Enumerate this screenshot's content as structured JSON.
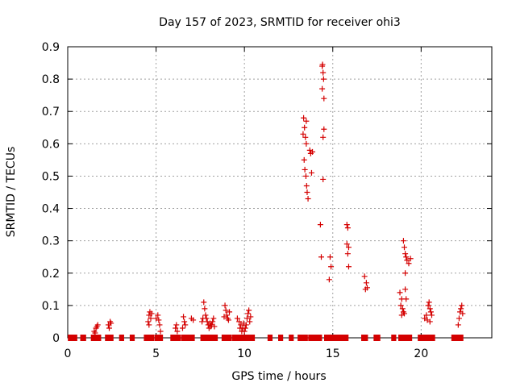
{
  "chart_data": {
    "type": "scatter",
    "title": "Day 157 of 2023, SRMTID for receiver ohi3",
    "xlabel": "GPS time / hours",
    "ylabel": "SRMTID / TECUs",
    "xlim": [
      0,
      24
    ],
    "ylim": [
      0,
      0.9
    ],
    "xticks": [
      0,
      5,
      10,
      15,
      20
    ],
    "yticks": [
      0,
      0.1,
      0.2,
      0.3,
      0.4,
      0.5,
      0.6,
      0.7,
      0.8,
      0.9
    ],
    "grid": true,
    "marker": "+",
    "color": "#d40000",
    "series": [
      {
        "name": "SRMTID",
        "points": [
          [
            1.5,
            0.02
          ],
          [
            1.6,
            0.03
          ],
          [
            1.7,
            0.04
          ],
          [
            1.55,
            0.015
          ],
          [
            1.65,
            0.035
          ],
          [
            2.3,
            0.04
          ],
          [
            2.4,
            0.05
          ],
          [
            2.35,
            0.03
          ],
          [
            2.45,
            0.045
          ],
          [
            4.6,
            0.07
          ],
          [
            4.65,
            0.08
          ],
          [
            4.7,
            0.06
          ],
          [
            4.55,
            0.05
          ],
          [
            4.75,
            0.075
          ],
          [
            4.6,
            0.04
          ],
          [
            5.1,
            0.07
          ],
          [
            5.15,
            0.055
          ],
          [
            5.2,
            0.04
          ],
          [
            5.25,
            0.02
          ],
          [
            5.0,
            0.06
          ],
          [
            6.1,
            0.03
          ],
          [
            6.2,
            0.02
          ],
          [
            6.15,
            0.04
          ],
          [
            6.5,
            0.03
          ],
          [
            6.6,
            0.05
          ],
          [
            6.55,
            0.065
          ],
          [
            6.65,
            0.04
          ],
          [
            7.0,
            0.06
          ],
          [
            7.1,
            0.055
          ],
          [
            7.7,
            0.11
          ],
          [
            7.75,
            0.09
          ],
          [
            7.8,
            0.07
          ],
          [
            7.85,
            0.06
          ],
          [
            7.9,
            0.05
          ],
          [
            7.95,
            0.04
          ],
          [
            8.0,
            0.03
          ],
          [
            8.05,
            0.045
          ],
          [
            8.1,
            0.035
          ],
          [
            8.15,
            0.04
          ],
          [
            8.2,
            0.05
          ],
          [
            8.3,
            0.035
          ],
          [
            7.6,
            0.05
          ],
          [
            7.65,
            0.06
          ],
          [
            8.25,
            0.06
          ],
          [
            8.9,
            0.1
          ],
          [
            8.95,
            0.085
          ],
          [
            9.0,
            0.07
          ],
          [
            9.05,
            0.06
          ],
          [
            9.1,
            0.055
          ],
          [
            8.85,
            0.065
          ],
          [
            9.15,
            0.08
          ],
          [
            9.6,
            0.06
          ],
          [
            9.7,
            0.05
          ],
          [
            9.8,
            0.04
          ],
          [
            9.9,
            0.03
          ],
          [
            10.0,
            0.02
          ],
          [
            10.1,
            0.04
          ],
          [
            10.15,
            0.06
          ],
          [
            10.2,
            0.075
          ],
          [
            10.25,
            0.085
          ],
          [
            10.3,
            0.05
          ],
          [
            9.75,
            0.03
          ],
          [
            9.85,
            0.02
          ],
          [
            9.95,
            0.045
          ],
          [
            10.05,
            0.03
          ],
          [
            10.35,
            0.065
          ],
          [
            13.35,
            0.68
          ],
          [
            13.4,
            0.65
          ],
          [
            13.45,
            0.62
          ],
          [
            13.5,
            0.6
          ],
          [
            13.38,
            0.55
          ],
          [
            13.42,
            0.52
          ],
          [
            13.48,
            0.5
          ],
          [
            13.52,
            0.47
          ],
          [
            13.55,
            0.45
          ],
          [
            13.6,
            0.43
          ],
          [
            13.7,
            0.58
          ],
          [
            13.75,
            0.57
          ],
          [
            13.85,
            0.575
          ],
          [
            13.8,
            0.51
          ],
          [
            13.32,
            0.63
          ],
          [
            13.5,
            0.67
          ],
          [
            14.3,
            0.35
          ],
          [
            14.35,
            0.25
          ],
          [
            14.4,
            0.84
          ],
          [
            14.42,
            0.845
          ],
          [
            14.45,
            0.82
          ],
          [
            14.48,
            0.8
          ],
          [
            14.4,
            0.77
          ],
          [
            14.5,
            0.74
          ],
          [
            14.45,
            0.62
          ],
          [
            14.5,
            0.645
          ],
          [
            14.45,
            0.49
          ],
          [
            14.85,
            0.25
          ],
          [
            14.9,
            0.22
          ],
          [
            14.8,
            0.18
          ],
          [
            15.8,
            0.35
          ],
          [
            15.85,
            0.34
          ],
          [
            15.8,
            0.29
          ],
          [
            15.9,
            0.28
          ],
          [
            15.85,
            0.26
          ],
          [
            15.9,
            0.22
          ],
          [
            16.8,
            0.19
          ],
          [
            16.9,
            0.17
          ],
          [
            16.85,
            0.15
          ],
          [
            16.95,
            0.155
          ],
          [
            18.8,
            0.14
          ],
          [
            18.9,
            0.12
          ],
          [
            18.85,
            0.1
          ],
          [
            18.95,
            0.09
          ],
          [
            19.0,
            0.08
          ],
          [
            19.05,
            0.075
          ],
          [
            19.1,
            0.15
          ],
          [
            19.15,
            0.12
          ],
          [
            18.9,
            0.07
          ],
          [
            19.1,
            0.2
          ],
          [
            19.0,
            0.3
          ],
          [
            19.05,
            0.28
          ],
          [
            19.1,
            0.26
          ],
          [
            19.2,
            0.24
          ],
          [
            19.3,
            0.23
          ],
          [
            19.4,
            0.245
          ],
          [
            19.15,
            0.25
          ],
          [
            20.2,
            0.06
          ],
          [
            20.3,
            0.07
          ],
          [
            20.4,
            0.1
          ],
          [
            20.45,
            0.11
          ],
          [
            20.5,
            0.09
          ],
          [
            20.55,
            0.08
          ],
          [
            20.35,
            0.055
          ],
          [
            20.6,
            0.07
          ],
          [
            20.5,
            0.05
          ],
          [
            22.1,
            0.04
          ],
          [
            22.15,
            0.06
          ],
          [
            22.2,
            0.08
          ],
          [
            22.25,
            0.09
          ],
          [
            22.3,
            0.1
          ],
          [
            22.35,
            0.075
          ]
        ],
        "baseline_ranges": [
          [
            0.1,
            0.45
          ],
          [
            0.8,
            0.95
          ],
          [
            1.4,
            1.8
          ],
          [
            2.2,
            2.5
          ],
          [
            3.0,
            3.1
          ],
          [
            3.6,
            3.7
          ],
          [
            4.4,
            4.8
          ],
          [
            5.0,
            5.3
          ],
          [
            5.9,
            6.3
          ],
          [
            6.5,
            7.1
          ],
          [
            7.6,
            8.4
          ],
          [
            8.8,
            9.2
          ],
          [
            9.4,
            10.5
          ],
          [
            11.4,
            11.5
          ],
          [
            12.0,
            12.1
          ],
          [
            12.6,
            12.7
          ],
          [
            13.1,
            13.5
          ],
          [
            13.7,
            14.3
          ],
          [
            14.6,
            15.8
          ],
          [
            16.7,
            16.9
          ],
          [
            17.4,
            17.6
          ],
          [
            18.4,
            18.5
          ],
          [
            18.8,
            19.4
          ],
          [
            19.9,
            20.7
          ],
          [
            21.8,
            22.3
          ]
        ]
      }
    ]
  }
}
